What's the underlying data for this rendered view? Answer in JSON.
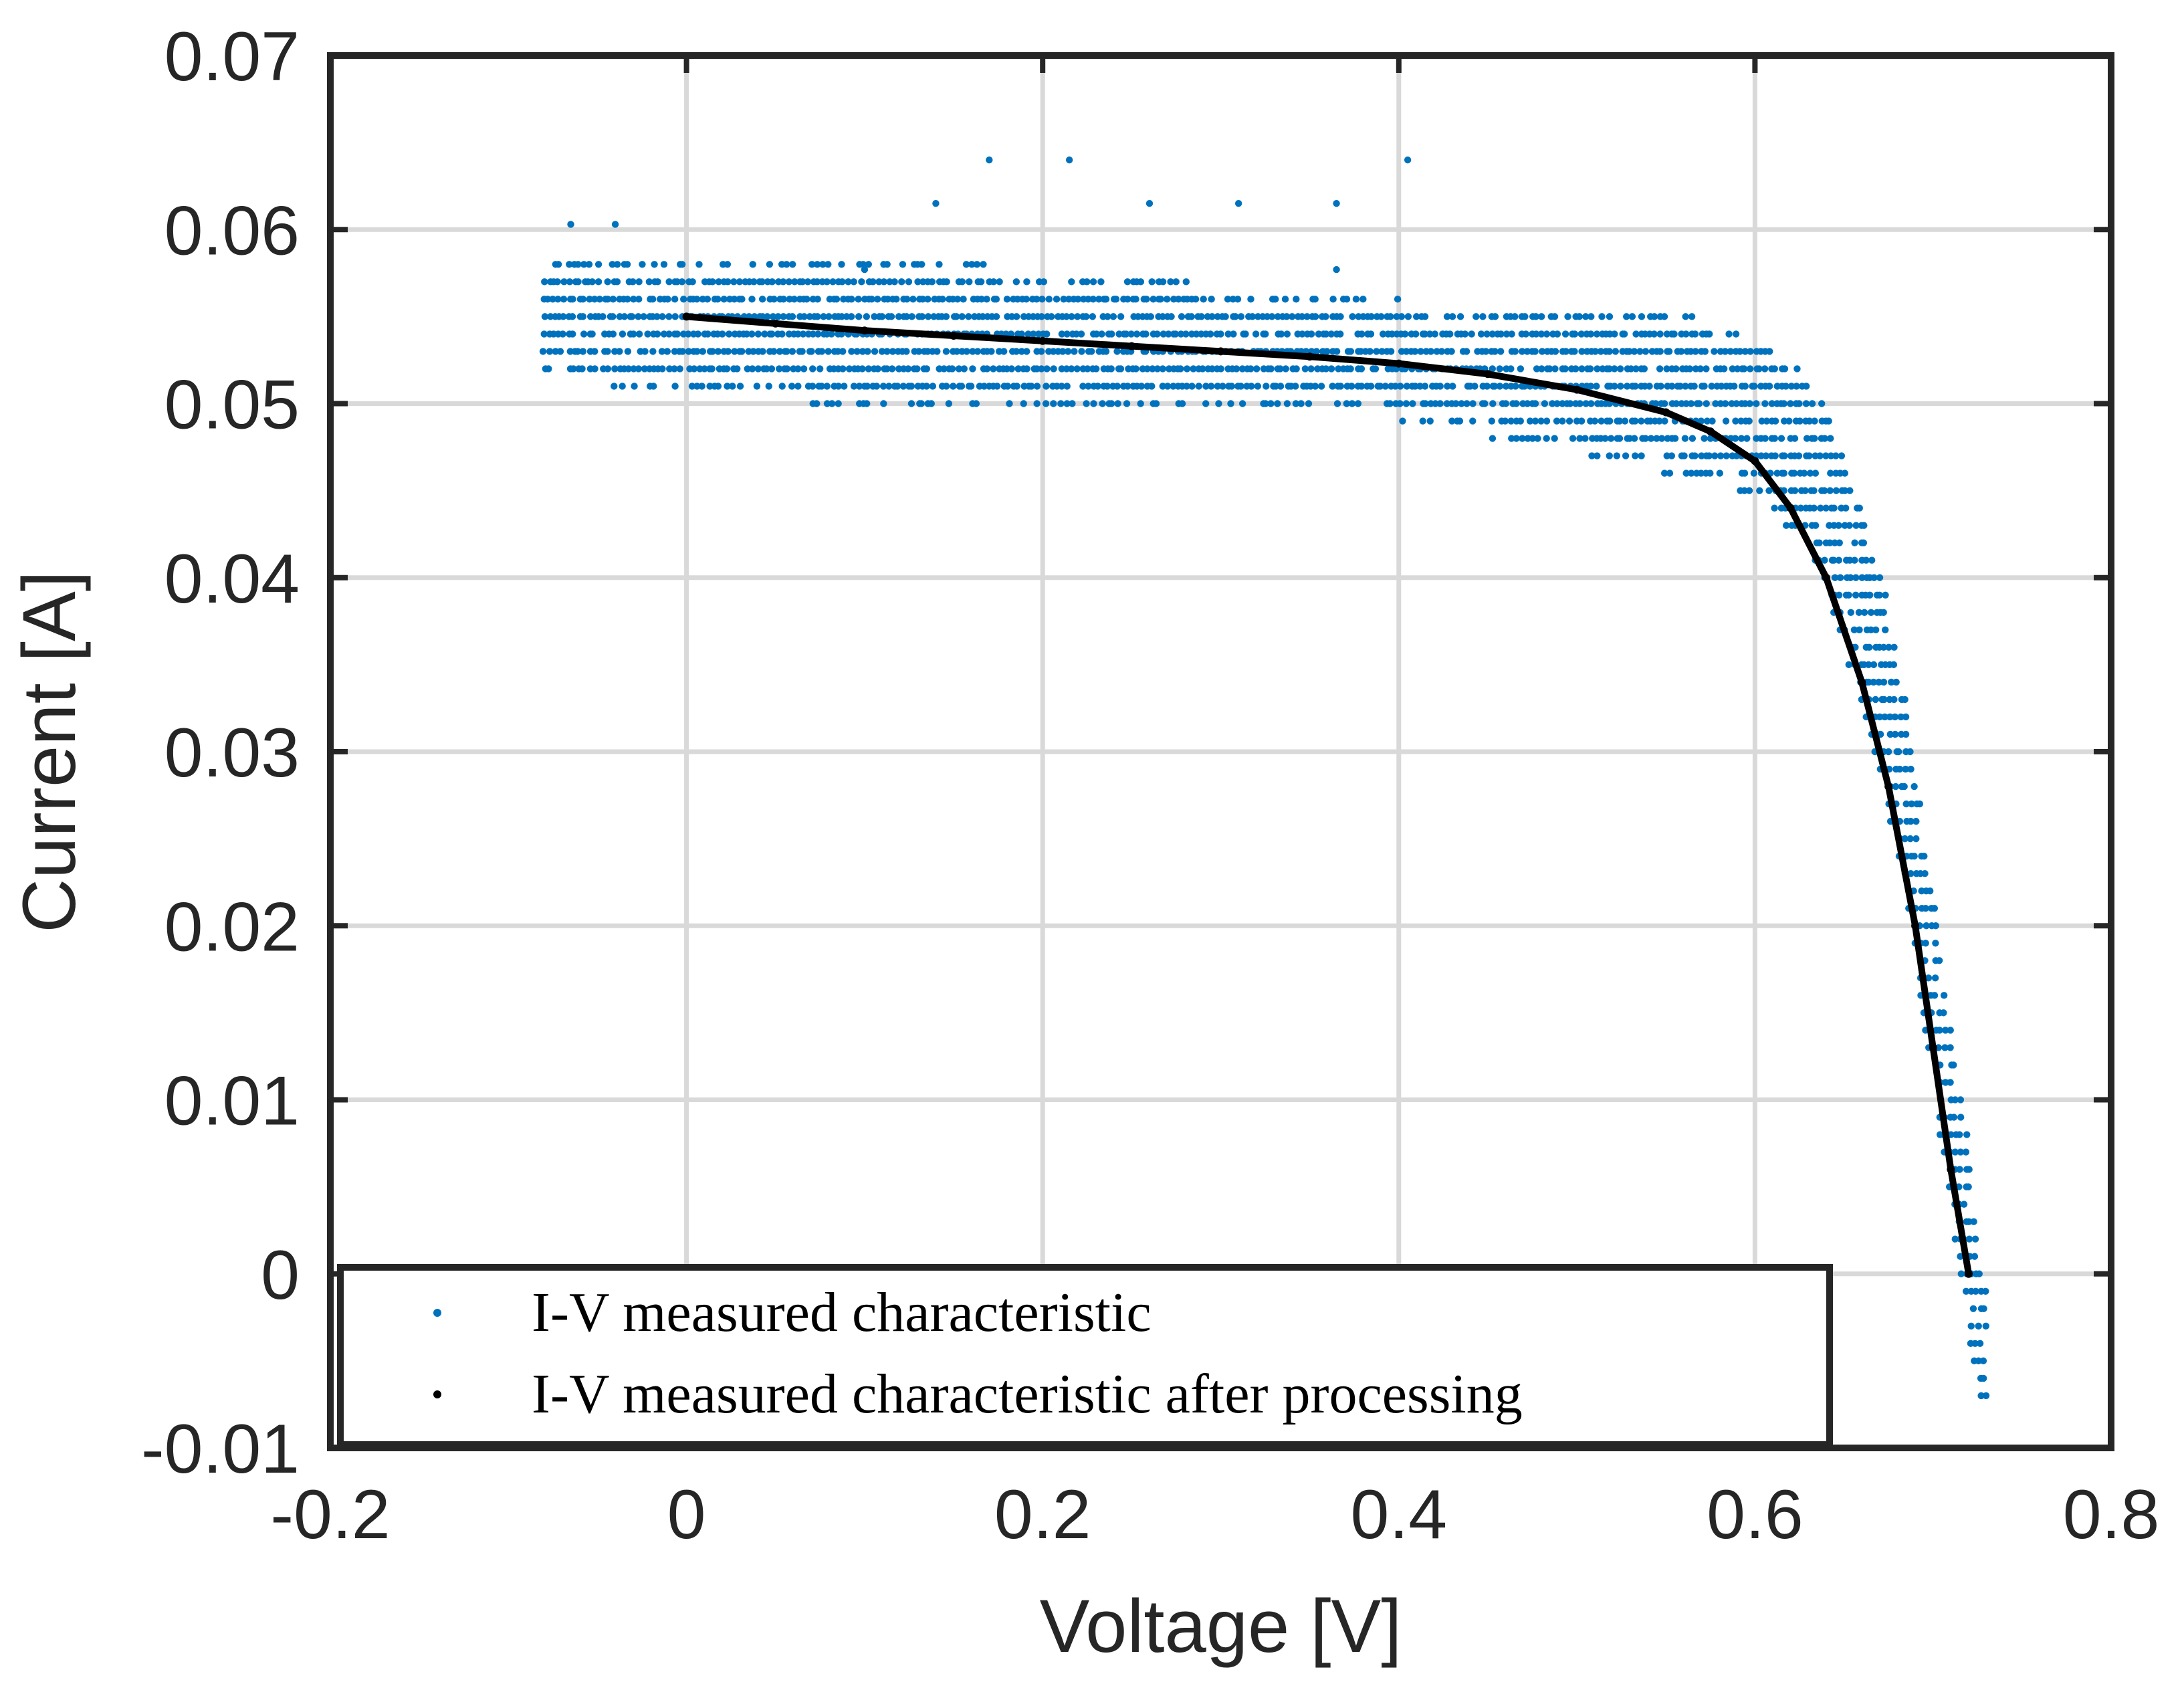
{
  "colors": {
    "measured": "#0072BD",
    "processed": "#000000",
    "axis": "#262626",
    "grid": "#d9d9d9"
  },
  "chart_data": {
    "type": "scatter",
    "title": "",
    "xlabel": "Voltage [V]",
    "ylabel": "Current [A]",
    "xlim": [
      -0.2,
      0.8
    ],
    "ylim": [
      -0.01,
      0.07
    ],
    "grid": true,
    "x_ticks": [
      -0.2,
      0,
      0.2,
      0.4,
      0.6,
      0.8
    ],
    "x_tick_labels": [
      "-0.2",
      "0",
      "0.2",
      "0.4",
      "0.6",
      "0.8"
    ],
    "y_ticks": [
      -0.01,
      0,
      0.01,
      0.02,
      0.03,
      0.04,
      0.05,
      0.06,
      0.07
    ],
    "y_tick_labels": [
      "-0.01",
      "0",
      "0.01",
      "0.02",
      "0.03",
      "0.04",
      "0.05",
      "0.06",
      "0.07"
    ],
    "legend_position": "bottom-left",
    "series": [
      {
        "name": "I-V measured characteristic",
        "style": "dots",
        "current_quantization": 0.001,
        "x_range_approx": [
          -0.08,
          0.73
        ],
        "outliers": [
          [
            0.17,
            0.064
          ],
          [
            0.215,
            0.064
          ],
          [
            0.405,
            0.064
          ],
          [
            0.14,
            0.0615
          ],
          [
            0.26,
            0.0615
          ],
          [
            0.31,
            0.0615
          ],
          [
            0.365,
            0.0615
          ],
          [
            0.365,
            0.0577
          ],
          [
            -0.065,
            0.0603
          ],
          [
            -0.04,
            0.0603
          ],
          [
            0.1,
            0.0577
          ]
        ],
        "envelope": [
          {
            "x": -0.08,
            "i_min": 0.0515,
            "i_max": 0.059
          },
          {
            "x": 0.0,
            "i_min": 0.0503,
            "i_max": 0.059
          },
          {
            "x": 0.2,
            "i_min": 0.0494,
            "i_max": 0.0578
          },
          {
            "x": 0.4,
            "i_min": 0.049,
            "i_max": 0.056
          },
          {
            "x": 0.55,
            "i_min": 0.046,
            "i_max": 0.0555
          },
          {
            "x": 0.6,
            "i_min": 0.0448,
            "i_max": 0.054
          },
          {
            "x": 0.63,
            "i_min": 0.041,
            "i_max": 0.0515
          },
          {
            "x": 0.65,
            "i_min": 0.036,
            "i_max": 0.048
          },
          {
            "x": 0.67,
            "i_min": 0.029,
            "i_max": 0.041
          },
          {
            "x": 0.685,
            "i_min": 0.021,
            "i_max": 0.033
          },
          {
            "x": 0.7,
            "i_min": 0.011,
            "i_max": 0.022
          },
          {
            "x": 0.715,
            "i_min": -0.001,
            "i_max": 0.011
          },
          {
            "x": 0.73,
            "i_min": -0.0098,
            "i_max": 0.0
          }
        ]
      },
      {
        "name": "I-V measured characteristic after processing",
        "style": "line-dots",
        "x": [
          0.0,
          0.05,
          0.1,
          0.15,
          0.2,
          0.25,
          0.3,
          0.35,
          0.4,
          0.45,
          0.5,
          0.55,
          0.575,
          0.6,
          0.62,
          0.64,
          0.66,
          0.675,
          0.69,
          0.7,
          0.71,
          0.72
        ],
        "y": [
          0.055,
          0.0546,
          0.0542,
          0.0539,
          0.0536,
          0.0533,
          0.053,
          0.0527,
          0.0523,
          0.0517,
          0.0508,
          0.0495,
          0.0484,
          0.0467,
          0.044,
          0.04,
          0.034,
          0.028,
          0.02,
          0.013,
          0.006,
          0.0
        ]
      }
    ]
  }
}
